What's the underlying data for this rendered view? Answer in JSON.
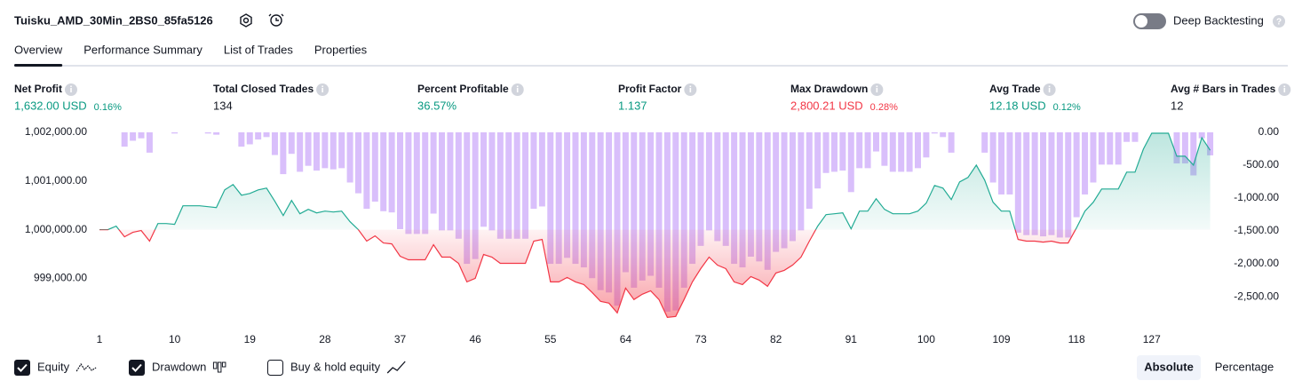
{
  "header": {
    "title": "Tuisku_AMD_30Min_2BS0_85fa5126",
    "deep_backtesting": {
      "label": "Deep Backtesting",
      "enabled": false
    }
  },
  "tabs": {
    "items": [
      "Overview",
      "Performance Summary",
      "List of Trades",
      "Properties"
    ],
    "active": 0
  },
  "metrics": [
    {
      "label": "Net Profit",
      "value": "1,632.00 USD",
      "percent": "0.16%",
      "color": "#089981"
    },
    {
      "label": "Total Closed Trades",
      "value": "134",
      "color": "#131722"
    },
    {
      "label": "Percent Profitable",
      "value": "36.57%",
      "color": "#089981"
    },
    {
      "label": "Profit Factor",
      "value": "1.137",
      "color": "#089981"
    },
    {
      "label": "Max Drawdown",
      "value": "2,800.21 USD",
      "percent": "0.28%",
      "color": "#f23645"
    },
    {
      "label": "Avg Trade",
      "value": "12.18 USD",
      "percent": "0.12%",
      "color": "#089981"
    },
    {
      "label": "Avg # Bars in Trades",
      "value": "12",
      "color": "#131722"
    }
  ],
  "chart_data": {
    "type": "line",
    "x": [
      1,
      2,
      3,
      4,
      5,
      6,
      7,
      8,
      9,
      10,
      11,
      12,
      13,
      14,
      15,
      16,
      17,
      18,
      19,
      20,
      21,
      22,
      23,
      24,
      25,
      26,
      27,
      28,
      29,
      30,
      31,
      32,
      33,
      34,
      35,
      36,
      37,
      38,
      39,
      40,
      41,
      42,
      43,
      44,
      45,
      46,
      47,
      48,
      49,
      50,
      51,
      52,
      53,
      54,
      55,
      56,
      57,
      58,
      59,
      60,
      61,
      62,
      63,
      64,
      65,
      66,
      67,
      68,
      69,
      70,
      71,
      72,
      73,
      74,
      75,
      76,
      77,
      78,
      79,
      80,
      81,
      82,
      83,
      84,
      85,
      86,
      87,
      88,
      89,
      90,
      91,
      92,
      93,
      94,
      95,
      96,
      97,
      98,
      99,
      100,
      101,
      102,
      103,
      104,
      105,
      106,
      107,
      108,
      109,
      110,
      111,
      112,
      113,
      114,
      115,
      116,
      117,
      118,
      119,
      120,
      121,
      122,
      123,
      124,
      125,
      126,
      127,
      128,
      129,
      130,
      131,
      132,
      133,
      134
    ],
    "xlim": [
      1,
      135
    ],
    "xticks": [
      1,
      10,
      19,
      28,
      37,
      46,
      55,
      64,
      73,
      82,
      91,
      100,
      109,
      118,
      127
    ],
    "ylim": [
      998150,
      1002000
    ],
    "yticks": [
      {
        "value": 1002000,
        "label": "1,002,000.00"
      },
      {
        "value": 1001000,
        "label": "1,001,000.00"
      },
      {
        "value": 1000000,
        "label": "1,000,000.00"
      },
      {
        "value": 999000,
        "label": "999,000.00"
      }
    ],
    "y2lim": [
      -2850,
      0
    ],
    "y2ticks": [
      {
        "value": 0,
        "label": "0.00"
      },
      {
        "value": -500,
        "label": "-500.00"
      },
      {
        "value": -1000,
        "label": "-1,000.00"
      },
      {
        "value": -1500,
        "label": "-1,500.00"
      },
      {
        "value": -2000,
        "label": "-2,000.00"
      },
      {
        "value": -2500,
        "label": "-2,500.00"
      }
    ],
    "series": [
      {
        "name": "Equity",
        "type": "line",
        "checked": true,
        "color": "#22ab94",
        "negative_color": "#f23645",
        "values": [
          1000000,
          1000000,
          1000073,
          999855,
          999945,
          999982,
          999764,
          1000127,
          1000127,
          1000109,
          1000491,
          1000491,
          1000491,
          1000473,
          1000455,
          1000818,
          1000927,
          1000709,
          1000745,
          1000818,
          1000855,
          1000582,
          1000291,
          1000600,
          1000327,
          1000418,
          1000345,
          1000382,
          1000364,
          1000382,
          1000164,
          1000000,
          999764,
          999873,
          999727,
          999709,
          999455,
          999382,
          999382,
          999382,
          999691,
          999436,
          999436,
          999309,
          998927,
          999000,
          999491,
          999436,
          999309,
          999309,
          999309,
          999309,
          999764,
          999800,
          998927,
          998927,
          999018,
          998927,
          998873,
          998709,
          998527,
          998491,
          998291,
          998800,
          998564,
          998673,
          998745,
          998564,
          998200,
          998218,
          998564,
          998927,
          999200,
          999436,
          999273,
          999200,
          998927,
          998873,
          999036,
          998964,
          998836,
          999109,
          999164,
          999273,
          999436,
          999764,
          1000073,
          1000309,
          1000327,
          1000345,
          1000018,
          1000382,
          1000382,
          1000636,
          1000418,
          1000327,
          1000327,
          1000327,
          1000382,
          1000545,
          1000909,
          1000855,
          1000618,
          1000982,
          1001073,
          1001327,
          1001018,
          1000564,
          1000382,
          1000382,
          999800,
          999764,
          999764,
          999745,
          999764,
          999727,
          999727,
          1000036,
          1000382,
          1000564,
          1000836,
          1000836,
          1000836,
          1001182,
          1001182,
          1001655,
          1001982,
          1001982,
          1001982,
          1001509,
          1001509,
          1001327,
          1001891,
          1001632
        ]
      },
      {
        "name": "Drawdown",
        "type": "bar",
        "axis": "y2",
        "checked": true,
        "color": "#d9bffb",
        "values": [
          0,
          0,
          0,
          -218,
          -128,
          -91,
          -309,
          0,
          0,
          -18,
          0,
          0,
          0,
          -18,
          -36,
          0,
          0,
          -218,
          -182,
          -109,
          -72,
          -345,
          -636,
          -327,
          -600,
          -509,
          -582,
          -545,
          -563,
          -545,
          -763,
          -927,
          -1163,
          -1054,
          -1200,
          -1218,
          -1472,
          -1545,
          -1545,
          -1545,
          -1236,
          -1491,
          -1491,
          -1618,
          -2000,
          -1927,
          -1436,
          -1491,
          -1618,
          -1618,
          -1618,
          -1618,
          -1163,
          -1127,
          -2000,
          -2000,
          -1909,
          -2000,
          -2054,
          -2218,
          -2400,
          -2436,
          -2636,
          -2127,
          -2363,
          -2254,
          -2182,
          -2363,
          -2727,
          -2709,
          -2363,
          -2000,
          -1727,
          -1491,
          -1654,
          -1727,
          -2000,
          -2054,
          -1891,
          -1963,
          -2091,
          -1818,
          -1763,
          -1654,
          -1491,
          -1163,
          -854,
          -618,
          -600,
          -582,
          -909,
          -545,
          -545,
          -291,
          -509,
          -600,
          -600,
          -600,
          -545,
          -382,
          -18,
          -72,
          -309,
          0,
          0,
          0,
          -309,
          -763,
          -945,
          -945,
          -1527,
          -1563,
          -1563,
          -1582,
          -1563,
          -1600,
          -1600,
          -1291,
          -945,
          -763,
          -491,
          -491,
          -491,
          -145,
          -145,
          0,
          0,
          0,
          0,
          -473,
          -473,
          -655,
          -91,
          -350
        ]
      }
    ]
  },
  "footer": {
    "extra_toggle": {
      "label": "Buy & hold equity",
      "checked": false
    },
    "modes": [
      "Absolute",
      "Percentage"
    ],
    "active_mode": 0
  }
}
